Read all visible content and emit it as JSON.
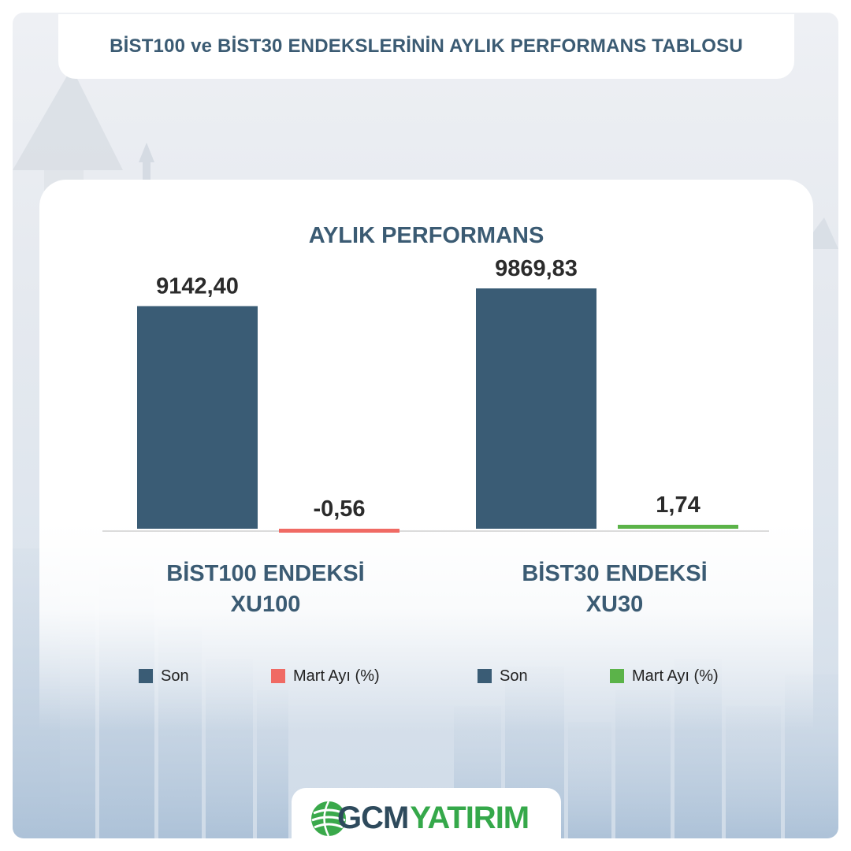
{
  "header": {
    "title": "BİST100 ve BİST30 ENDEKSLERİNİN AYLIK PERFORMANS TABLOSU"
  },
  "chart_data": {
    "type": "bar",
    "title": "AYLIK PERFORMANS",
    "groups": [
      {
        "name_line1": "BİST100 ENDEKSİ",
        "name_line2": "XU100",
        "bars": [
          {
            "series": "Son",
            "value": 9142.4,
            "label": "9142,40",
            "color": "#3a5c75"
          },
          {
            "series": "Mart Ayı (%)",
            "value": -0.56,
            "label": "-0,56",
            "color": "#f06a64"
          }
        ]
      },
      {
        "name_line1": "BİST30 ENDEKSİ",
        "name_line2": "XU30",
        "bars": [
          {
            "series": "Son",
            "value": 9869.83,
            "label": "9869,83",
            "color": "#3a5c75"
          },
          {
            "series": "Mart Ayı (%)",
            "value": 1.74,
            "label": "1,74",
            "color": "#5bb349"
          }
        ]
      }
    ],
    "legend": [
      {
        "label": "Son",
        "color": "#3a5c75"
      },
      {
        "label": "Mart Ayı (%)",
        "color": "#f06a64"
      },
      {
        "label": "Son",
        "color": "#3a5c75"
      },
      {
        "label": "Mart Ayı (%)",
        "color": "#5bb349"
      }
    ]
  },
  "logo": {
    "part1": "GCM",
    "part2": "YATIRIM",
    "color1": "#2e4a5c",
    "color2": "#35a84a"
  }
}
